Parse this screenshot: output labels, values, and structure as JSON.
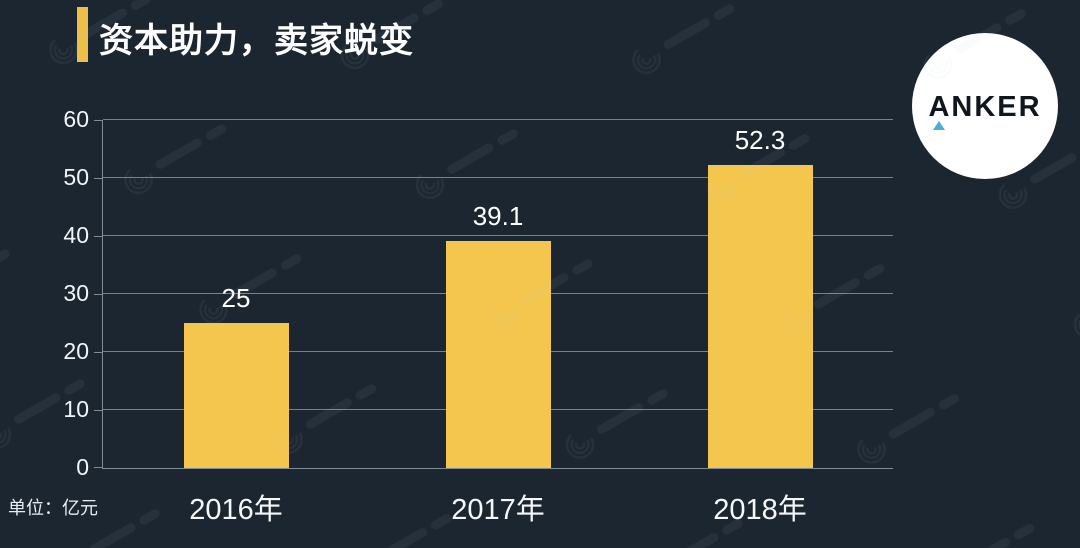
{
  "title": {
    "text": "资本助力，卖家蜕变",
    "accent_color": "#edbe4a"
  },
  "logo": {
    "text": "ANKER",
    "shape": "white-circle",
    "triangle_color": "#49add8",
    "text_color": "#10161d"
  },
  "unit_label": "单位：亿元",
  "colors": {
    "background": "#1c2630",
    "bar": "#f4c64d",
    "grid": "#75818d",
    "text": "#ffffff"
  },
  "watermark": {
    "icon": "swirl-logo-watermark"
  },
  "chart_data": {
    "type": "bar",
    "categories": [
      "2016年",
      "2017年",
      "2018年"
    ],
    "values": [
      25,
      39.1,
      52.3
    ],
    "value_labels": [
      "25",
      "39.1",
      "52.3"
    ],
    "title": "资本助力，卖家蜕变",
    "xlabel": "",
    "ylabel": "单位：亿元",
    "ylim": [
      0,
      60
    ],
    "yticks": [
      0,
      10,
      20,
      30,
      40,
      50,
      60
    ],
    "grid": true,
    "legend": false
  }
}
